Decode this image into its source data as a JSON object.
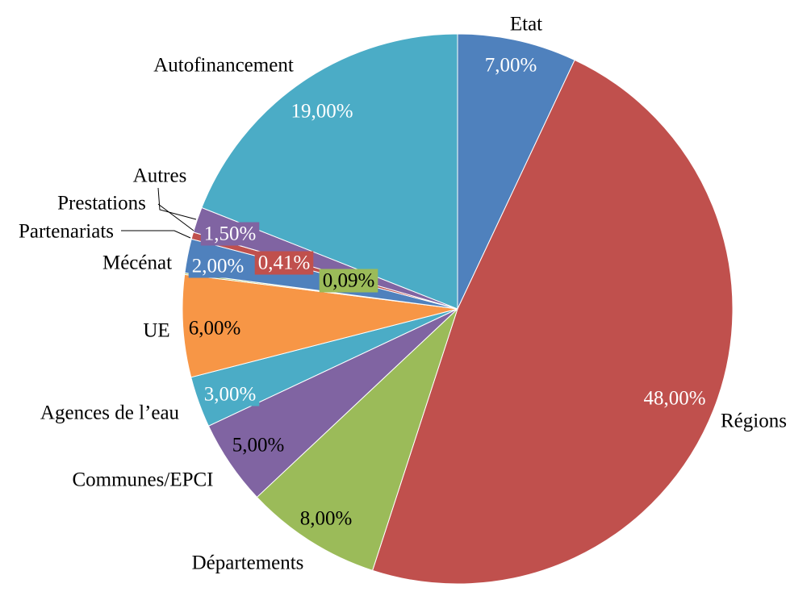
{
  "chart_data": {
    "type": "pie",
    "title": "",
    "slices": [
      {
        "label": "Etat",
        "value": 7.0,
        "value_label": "7,00%",
        "color": "#4f81bd"
      },
      {
        "label": "Régions",
        "value": 48.0,
        "value_label": "48,00%",
        "color": "#c0504d"
      },
      {
        "label": "Départements",
        "value": 8.0,
        "value_label": "8,00%",
        "color": "#9bbb59"
      },
      {
        "label": "Communes/EPCI",
        "value": 5.0,
        "value_label": "5,00%",
        "color": "#8064a2"
      },
      {
        "label": "Agences  de l’eau",
        "value": 3.0,
        "value_label": "3,00%",
        "color": "#4bacc6"
      },
      {
        "label": "UE",
        "value": 6.0,
        "value_label": "6,00%",
        "color": "#f79646"
      },
      {
        "label": "",
        "value": 0.09,
        "value_label": "0,09%",
        "color": "#9bbb59"
      },
      {
        "label": "Mécénat",
        "value": 2.0,
        "value_label": "2,00%",
        "color": "#4f81bd"
      },
      {
        "label": "Partenariats",
        "value": 0.41,
        "value_label": "0,41%",
        "color": "#c0504d"
      },
      {
        "label": "Prestations",
        "value": 0.0,
        "value_label": "",
        "color": "#9bbb59"
      },
      {
        "label": "Autres",
        "value": 1.5,
        "value_label": "1,50%",
        "color": "#8064a2"
      },
      {
        "label": "Autofinancement",
        "value": 19.0,
        "value_label": "19,00%",
        "color": "#4bacc6"
      }
    ]
  }
}
